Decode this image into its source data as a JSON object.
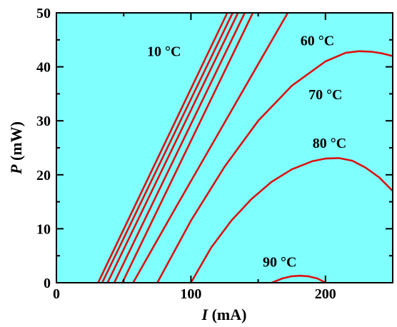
{
  "chart_data": {
    "type": "line",
    "title": "",
    "xlabel": {
      "var": "I",
      "unit": " (mA)"
    },
    "ylabel": {
      "var": "P",
      "unit": " (mW)"
    },
    "xlim": [
      0,
      250
    ],
    "ylim": [
      0,
      50
    ],
    "xticks": [
      0,
      100,
      200
    ],
    "xticks_minor": [
      50,
      150,
      250
    ],
    "yticks": [
      0,
      10,
      20,
      30,
      40,
      50
    ],
    "yticks_minor": [
      5,
      15,
      25,
      35,
      45
    ],
    "grid": false,
    "background_color": "#80ffff",
    "line_color": "#dd1111",
    "series": [
      {
        "x": [
          31,
          127
        ],
        "y": [
          0,
          50
        ]
      },
      {
        "x": [
          34,
          131
        ],
        "y": [
          0,
          50
        ]
      },
      {
        "x": [
          38,
          135
        ],
        "y": [
          0,
          50
        ]
      },
      {
        "x": [
          43,
          140
        ],
        "y": [
          0,
          50
        ]
      },
      {
        "x": [
          49,
          146
        ],
        "y": [
          0,
          50
        ]
      },
      {
        "x": [
          57,
          90,
          120,
          150,
          172
        ],
        "y": [
          0,
          14.5,
          27.5,
          40.5,
          50
        ]
      },
      {
        "x": [
          75,
          100,
          125,
          150,
          175,
          200,
          215,
          225,
          234,
          242,
          250
        ],
        "y": [
          0,
          11.5,
          21.5,
          30,
          36.5,
          41,
          42.6,
          42.9,
          42.8,
          42.5,
          42
        ]
      },
      {
        "x": [
          100,
          115,
          130,
          145,
          160,
          175,
          190,
          200,
          210,
          220,
          230,
          240,
          250
        ],
        "y": [
          0,
          6.5,
          11.5,
          15.5,
          18.7,
          21,
          22.5,
          23,
          23.1,
          22.6,
          21.3,
          19.5,
          17
        ]
      },
      {
        "x": [
          160,
          168,
          175,
          181,
          187,
          194,
          200
        ],
        "y": [
          0,
          0.8,
          1.2,
          1.3,
          1.2,
          0.8,
          0
        ]
      }
    ],
    "annotations": [
      {
        "text": "10 °C",
        "x": 80,
        "y": 42
      },
      {
        "text": "60 °C",
        "x": 194,
        "y": 44
      },
      {
        "text": "70 °C",
        "x": 200,
        "y": 34
      },
      {
        "text": "80 °C",
        "x": 203,
        "y": 25
      },
      {
        "text": "90 °C",
        "x": 166,
        "y": 3
      }
    ]
  }
}
